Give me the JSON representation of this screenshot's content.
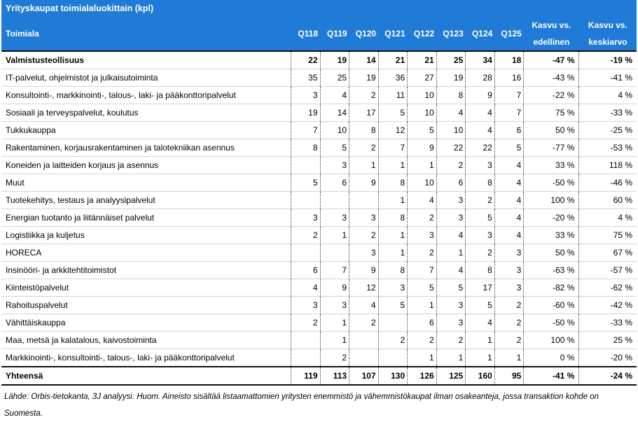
{
  "title": "Yrityskaupat toimialaluokittain (kpl)",
  "header": {
    "name": "Toimiala",
    "quarters": [
      "Q118",
      "Q119",
      "Q120",
      "Q121",
      "Q122",
      "Q123",
      "Q124",
      "Q125"
    ],
    "growth_prev": [
      "Kasvu vs.",
      "edellinen"
    ],
    "growth_avg": [
      "Kasvu vs.",
      "keskiarvo"
    ]
  },
  "rows": [
    {
      "name": "Valmistusteollisuus",
      "vals": [
        "22",
        "19",
        "14",
        "21",
        "21",
        "25",
        "34",
        "18"
      ],
      "g1": "-47 %",
      "g2": "-19 %"
    },
    {
      "name": "IT-palvelut, ohjelmistot ja julkaisutoiminta",
      "vals": [
        "35",
        "25",
        "19",
        "36",
        "27",
        "19",
        "28",
        "16"
      ],
      "g1": "-43 %",
      "g2": "-41 %"
    },
    {
      "name": "Konsultointi-, markkinointi-, talous-, laki- ja pääkonttoripalvelut",
      "vals": [
        "3",
        "4",
        "2",
        "11",
        "10",
        "8",
        "9",
        "7"
      ],
      "g1": "-22 %",
      "g2": "4 %"
    },
    {
      "name": "Sosiaali ja terveyspalvelut, koulutus",
      "vals": [
        "19",
        "14",
        "17",
        "5",
        "10",
        "4",
        "4",
        "7"
      ],
      "g1": "75 %",
      "g2": "-33 %"
    },
    {
      "name": "Tukkukauppa",
      "vals": [
        "7",
        "10",
        "8",
        "12",
        "5",
        "10",
        "4",
        "6"
      ],
      "g1": "50 %",
      "g2": "-25 %"
    },
    {
      "name": "Rakentaminen, korjausrakentaminen ja talotekniikan asennus",
      "vals": [
        "8",
        "5",
        "2",
        "7",
        "9",
        "22",
        "22",
        "5"
      ],
      "g1": "-77 %",
      "g2": "-53 %"
    },
    {
      "name": "Koneiden ja laitteiden korjaus ja asennus",
      "vals": [
        "",
        "3",
        "1",
        "1",
        "1",
        "2",
        "3",
        "4"
      ],
      "g1": "33 %",
      "g2": "118 %"
    },
    {
      "name": "Muut",
      "vals": [
        "5",
        "6",
        "9",
        "8",
        "10",
        "6",
        "8",
        "4"
      ],
      "g1": "-50 %",
      "g2": "-46 %"
    },
    {
      "name": "Tuotekehitys, testaus ja analyysipalvelut",
      "vals": [
        "",
        "",
        "",
        "1",
        "4",
        "3",
        "2",
        "4"
      ],
      "g1": "100 %",
      "g2": "60 %"
    },
    {
      "name": "Energian tuotanto ja liitännäiset palvelut",
      "vals": [
        "3",
        "3",
        "3",
        "8",
        "2",
        "3",
        "5",
        "4"
      ],
      "g1": "-20 %",
      "g2": "4 %"
    },
    {
      "name": "Logistiikka ja kuljetus",
      "vals": [
        "2",
        "1",
        "2",
        "1",
        "3",
        "4",
        "3",
        "4"
      ],
      "g1": "33 %",
      "g2": "75 %"
    },
    {
      "name": "HORECA",
      "vals": [
        "",
        "",
        "3",
        "1",
        "2",
        "1",
        "2",
        "3"
      ],
      "g1": "50 %",
      "g2": "67 %"
    },
    {
      "name": "Insinööri- ja arkkitehtitoimistot",
      "vals": [
        "6",
        "7",
        "9",
        "8",
        "7",
        "4",
        "8",
        "3"
      ],
      "g1": "-63 %",
      "g2": "-57 %"
    },
    {
      "name": "Kiinteistöpalvelut",
      "vals": [
        "4",
        "9",
        "12",
        "3",
        "5",
        "5",
        "17",
        "3"
      ],
      "g1": "-82 %",
      "g2": "-62 %"
    },
    {
      "name": "Rahoituspalvelut",
      "vals": [
        "3",
        "3",
        "4",
        "5",
        "1",
        "3",
        "5",
        "2"
      ],
      "g1": "-60 %",
      "g2": "-42 %"
    },
    {
      "name": "Vähittäiskauppa",
      "vals": [
        "2",
        "1",
        "2",
        "",
        "6",
        "3",
        "4",
        "2"
      ],
      "g1": "-50 %",
      "g2": "-33 %"
    },
    {
      "name": "Maa, metsä ja kalatalous, kaivostoiminta",
      "vals": [
        "",
        "1",
        "",
        "2",
        "2",
        "2",
        "1",
        "2"
      ],
      "g1": "100 %",
      "g2": "25 %"
    },
    {
      "name": "Markkinointi-, konsultointi-, talous-, laki- ja pääkonttoripalvelut",
      "vals": [
        "",
        "2",
        "",
        "",
        "1",
        "1",
        "1",
        "1"
      ],
      "g1": "0 %",
      "g2": "-20 %"
    }
  ],
  "total": {
    "name": "Yhteensä",
    "vals": [
      "119",
      "113",
      "107",
      "130",
      "126",
      "125",
      "160",
      "95"
    ],
    "g1": "-41 %",
    "g2": "-24 %"
  },
  "note": "Lähde: Orbis-tietokanta, 3J analyysi. Huom. Aineisto sisältää listaamattomien yritysten enemmistö ja vähemmistökaupat ilman osakeanteja, jossa transaktion kohde on Suomesta."
}
